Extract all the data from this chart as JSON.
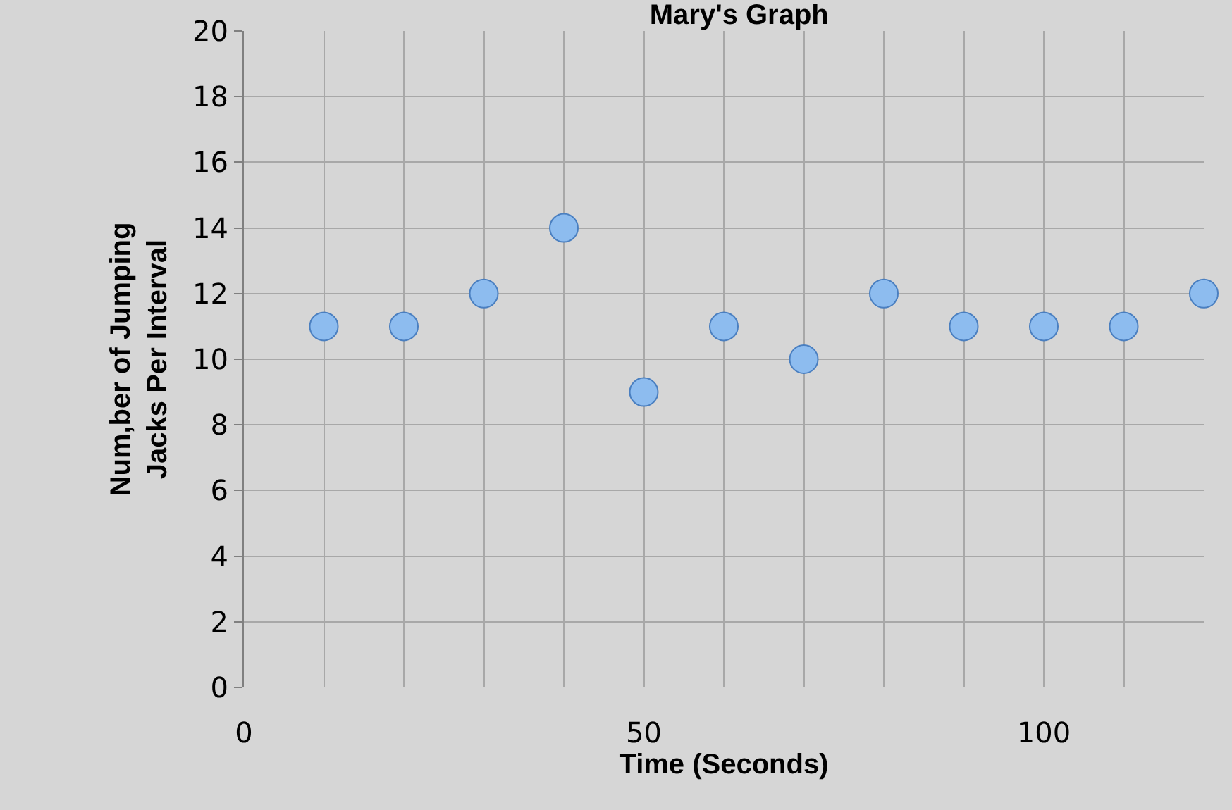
{
  "chart_data": {
    "type": "scatter",
    "title": "Mary's Graph",
    "xlabel": "Time (Seconds)",
    "ylabel": "Num,ber of Jumping Jacks Per Interval",
    "x": [
      10,
      20,
      30,
      40,
      50,
      60,
      70,
      80,
      90,
      100,
      110,
      120
    ],
    "series": [
      {
        "color": "#8dbcef",
        "values": [
          11,
          11,
          12,
          14,
          9,
          11,
          10,
          12,
          11,
          11,
          11,
          12
        ]
      }
    ],
    "xlim": [
      0,
      120
    ],
    "xticks": [
      0,
      {
        "value": 10,
        "label": null
      },
      {
        "value": 20,
        "label": null
      },
      {
        "value": 30,
        "label": null
      },
      {
        "value": 40,
        "label": null
      },
      50,
      {
        "value": 60,
        "label": null
      },
      {
        "value": 70,
        "label": null
      },
      {
        "value": 80,
        "label": null
      },
      {
        "value": 90,
        "label": null
      },
      100,
      {
        "value": 110,
        "label": null
      }
    ],
    "ylim": [
      0,
      20
    ],
    "yticks": [
      0,
      2,
      4,
      6,
      8,
      10,
      12,
      14,
      16,
      18,
      20
    ],
    "grid": true,
    "marker": "circle"
  }
}
